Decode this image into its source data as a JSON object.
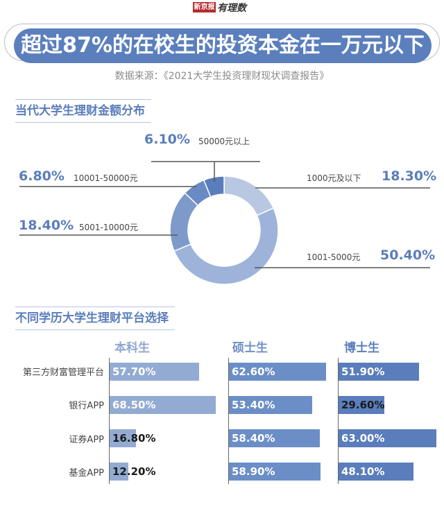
{
  "header": {
    "logo_brand": "新京报",
    "logo_column": "有理数",
    "title": "超过87%的在校生的投资本金在一万元以下",
    "source": "数据来源：《2021大学生投资理财现状调查报告》"
  },
  "section1": {
    "title": "当代大学生理财金额分布",
    "slices": [
      {
        "label": "1000元及以下",
        "pct": "18.30%"
      },
      {
        "label": "1001-5000元",
        "pct": "50.40%"
      },
      {
        "label": "5001-10000元",
        "pct": "18.40%"
      },
      {
        "label": "10001-50000元",
        "pct": "6.80%"
      },
      {
        "label": "50000元以上",
        "pct": "6.10%"
      }
    ]
  },
  "section2": {
    "title": "不同学历大学生理财平台选择",
    "columns": [
      "本科生",
      "硕士生",
      "博士生"
    ],
    "rows": [
      "第三方财富管理平台",
      "银行APP",
      "证券APP",
      "基金APP"
    ],
    "values": [
      [
        "57.70%",
        "62.60%",
        "51.90%"
      ],
      [
        "68.50%",
        "53.40%",
        "29.60%"
      ],
      [
        "16.80%",
        "58.40%",
        "63.00%"
      ],
      [
        "12.20%",
        "58.90%",
        "48.10%"
      ]
    ]
  },
  "colors": {
    "accent": "#5a7dbb",
    "slice_colors": [
      "#b8c8e2",
      "#9db3d9",
      "#7e9acb",
      "#6a8ac3",
      "#5a7dbb"
    ],
    "bar_colors": [
      "#93abd2",
      "#6b8ec6",
      "#5a7dbb"
    ],
    "column_head_colors": [
      "#8ea6cf",
      "#6f8fc5",
      "#5a7dbb"
    ]
  },
  "chart_data": [
    {
      "type": "pie",
      "title": "当代大学生理财金额分布",
      "categories": [
        "1000元及以下",
        "1001-5000元",
        "5001-10000元",
        "10001-50000元",
        "50000元以上"
      ],
      "values": [
        18.3,
        50.4,
        18.4,
        6.8,
        6.1
      ],
      "unit": "%",
      "style": "donut"
    },
    {
      "type": "bar",
      "orientation": "horizontal",
      "title": "不同学历大学生理财平台选择",
      "categories": [
        "第三方财富管理平台",
        "银行APP",
        "证券APP",
        "基金APP"
      ],
      "series": [
        {
          "name": "本科生",
          "values": [
            57.7,
            68.5,
            16.8,
            12.2
          ]
        },
        {
          "name": "硕士生",
          "values": [
            62.6,
            53.4,
            58.4,
            58.9
          ]
        },
        {
          "name": "博士生",
          "values": [
            51.9,
            29.6,
            63.0,
            48.1
          ]
        }
      ],
      "unit": "%",
      "layout": "small multiples, one panel per series"
    }
  ]
}
